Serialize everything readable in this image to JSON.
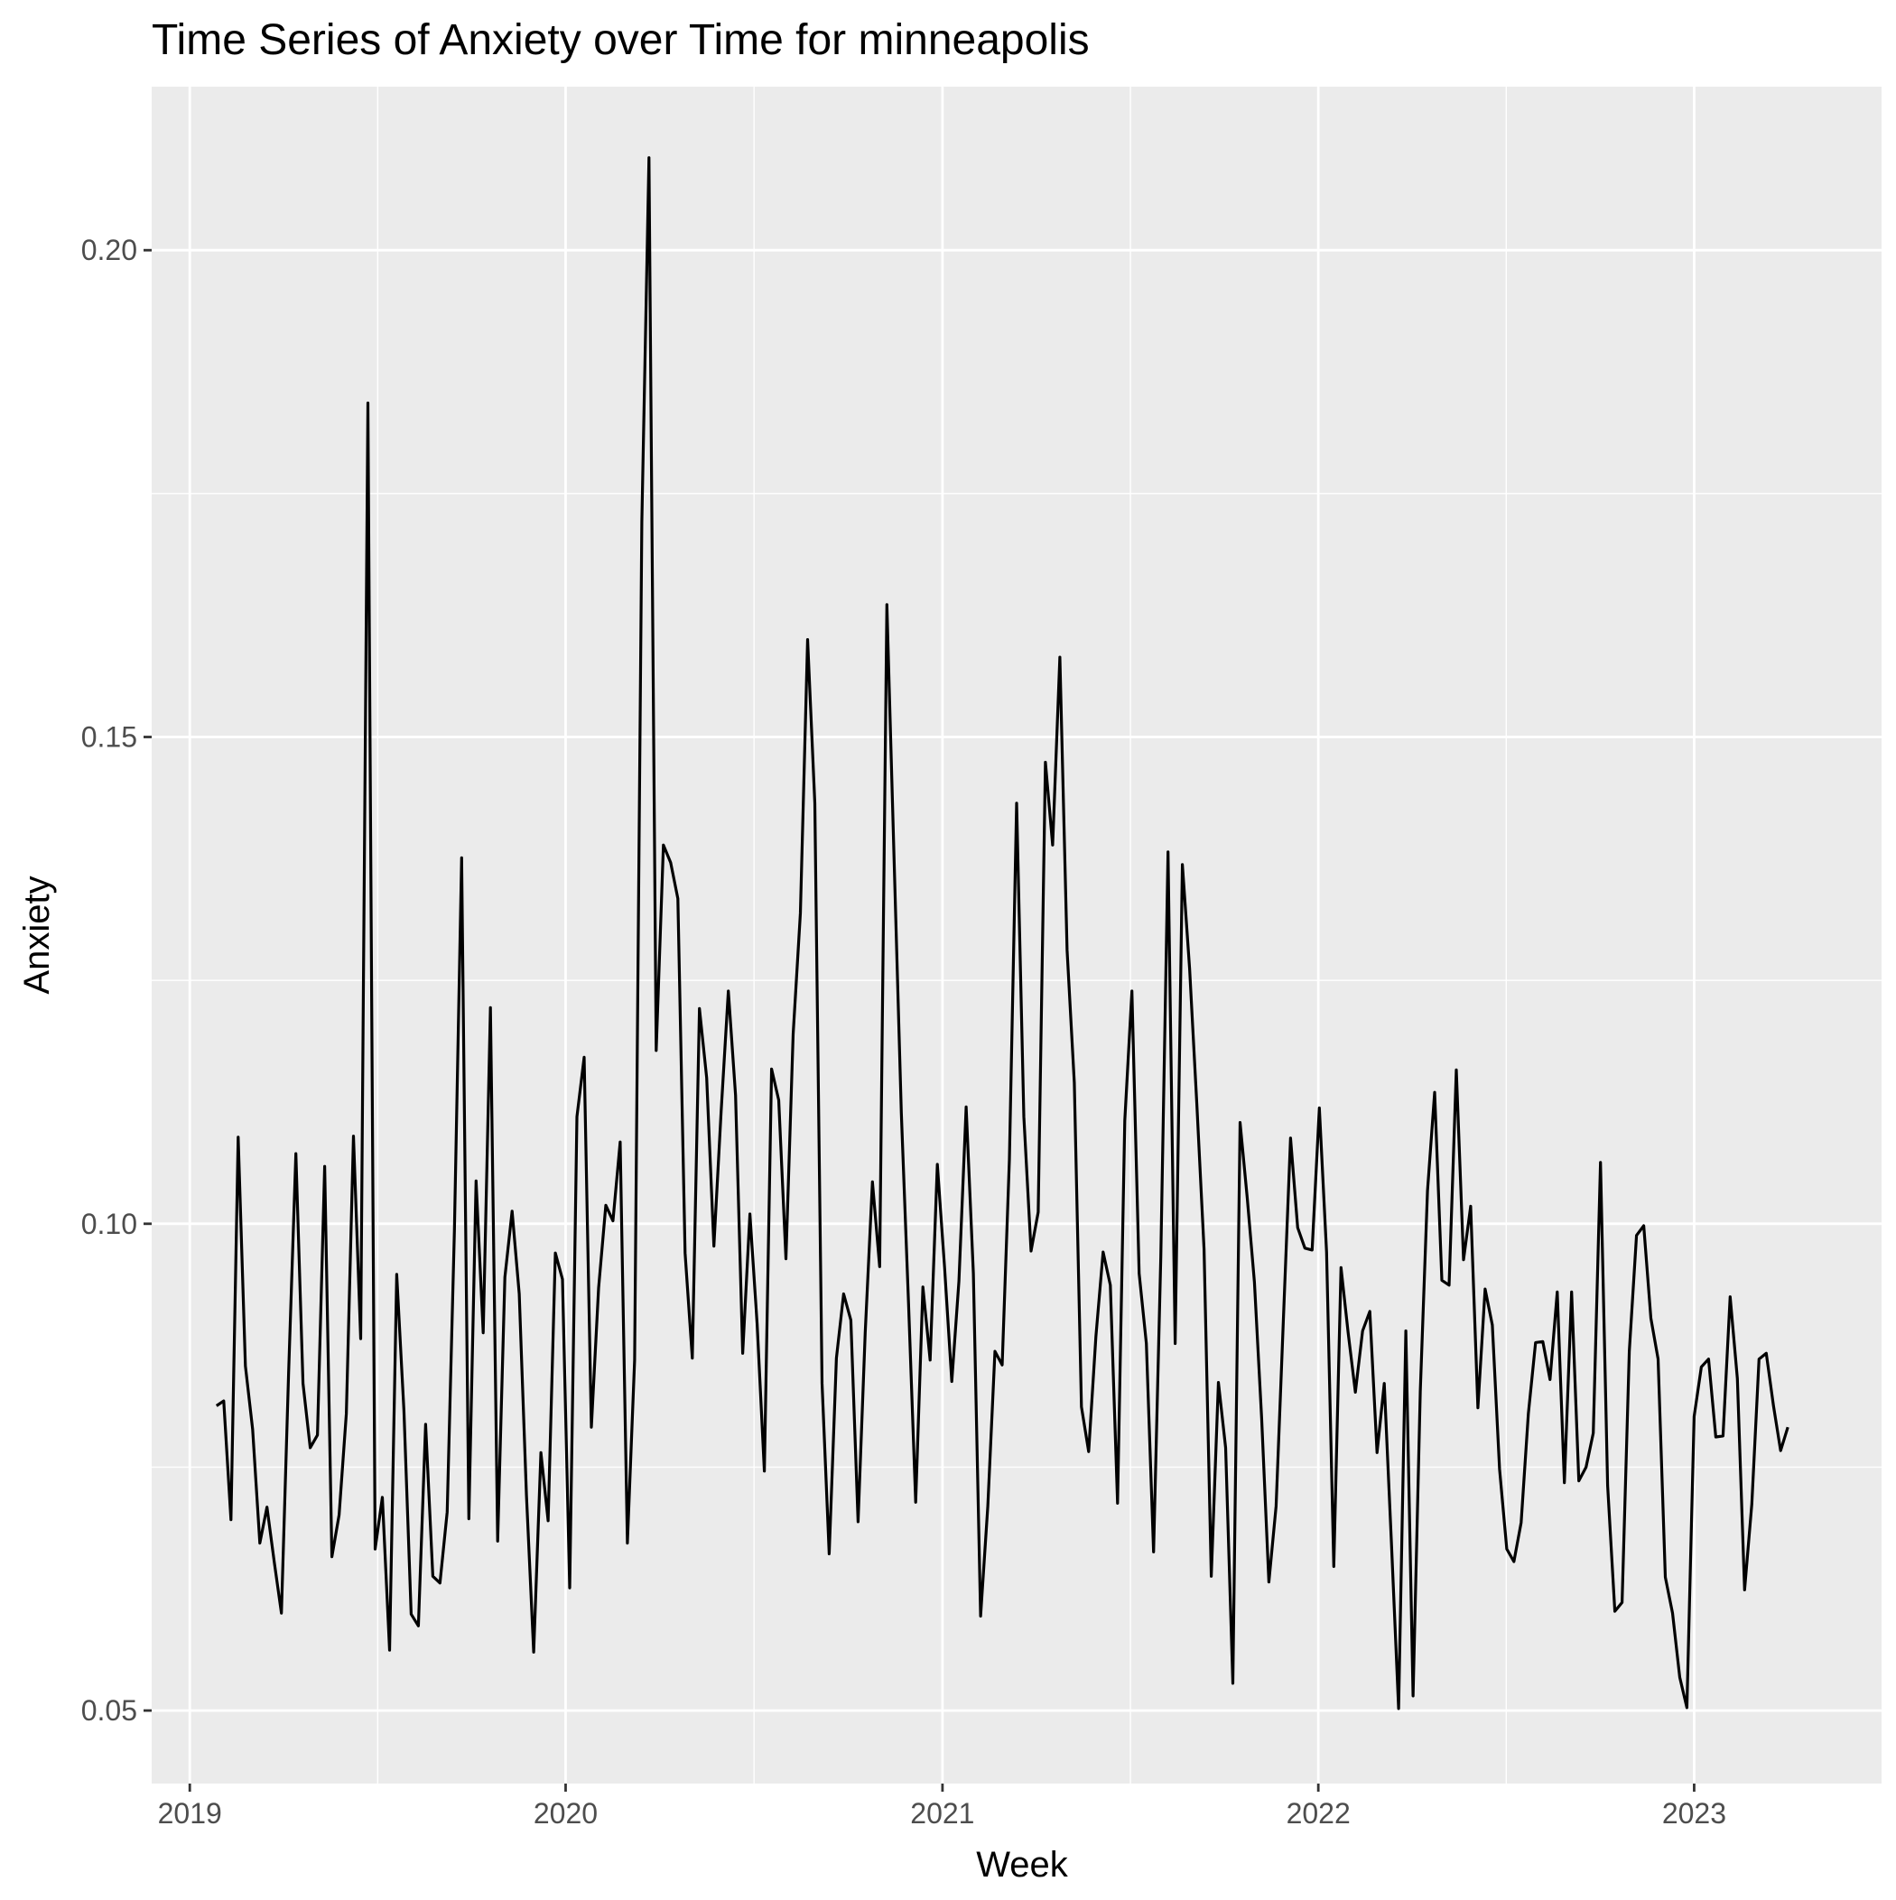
{
  "chart_data": {
    "type": "line",
    "title": "Time Series of Anxiety over Time for  minneapolis",
    "xlabel": "Week",
    "ylabel": "Anxiety",
    "x_range": [
      "2018-11-25",
      "2023-07-02"
    ],
    "ylim": [
      0.0425,
      0.2168
    ],
    "x_ticks": [
      {
        "date": "2019-01-01",
        "label": "2019"
      },
      {
        "date": "2020-01-01",
        "label": "2020"
      },
      {
        "date": "2021-01-01",
        "label": "2021"
      },
      {
        "date": "2022-01-01",
        "label": "2022"
      },
      {
        "date": "2023-01-01",
        "label": "2023"
      }
    ],
    "y_ticks": [
      {
        "value": 0.05,
        "label": "0.05"
      },
      {
        "value": 0.1,
        "label": "0.10"
      },
      {
        "value": 0.15,
        "label": "0.15"
      },
      {
        "value": 0.2,
        "label": "0.20"
      }
    ],
    "grid": true,
    "background": "#EBEBEB",
    "gridline_color": "#FFFFFF",
    "line_color": "#000000",
    "series": [
      {
        "x": [
          "2019-01-27",
          "2019-02-03",
          "2019-02-10",
          "2019-02-17",
          "2019-02-24",
          "2019-03-03",
          "2019-03-10",
          "2019-03-17",
          "2019-03-24",
          "2019-03-31",
          "2019-04-07",
          "2019-04-14",
          "2019-04-21",
          "2019-04-28",
          "2019-05-05",
          "2019-05-12",
          "2019-05-19",
          "2019-05-26",
          "2019-06-02",
          "2019-06-09",
          "2019-06-16",
          "2019-06-23",
          "2019-06-30",
          "2019-07-07",
          "2019-07-14",
          "2019-07-21",
          "2019-07-28",
          "2019-08-04",
          "2019-08-11",
          "2019-08-18",
          "2019-08-25",
          "2019-09-01",
          "2019-09-08",
          "2019-09-15",
          "2019-09-22",
          "2019-09-29",
          "2019-10-06",
          "2019-10-13",
          "2019-10-20",
          "2019-10-27",
          "2019-11-03",
          "2019-11-10",
          "2019-11-17",
          "2019-11-24",
          "2019-12-01",
          "2019-12-08",
          "2019-12-15",
          "2019-12-22",
          "2019-12-29",
          "2020-01-05",
          "2020-01-12",
          "2020-01-19",
          "2020-01-26",
          "2020-02-02",
          "2020-02-09",
          "2020-02-16",
          "2020-02-23",
          "2020-03-01",
          "2020-03-08",
          "2020-03-15",
          "2020-03-22",
          "2020-03-29",
          "2020-04-05",
          "2020-04-12",
          "2020-04-19",
          "2020-04-26",
          "2020-05-03",
          "2020-05-10",
          "2020-05-17",
          "2020-05-24",
          "2020-05-31",
          "2020-06-07",
          "2020-06-14",
          "2020-06-21",
          "2020-06-28",
          "2020-07-05",
          "2020-07-12",
          "2020-07-19",
          "2020-07-26",
          "2020-08-02",
          "2020-08-09",
          "2020-08-16",
          "2020-08-23",
          "2020-08-30",
          "2020-09-06",
          "2020-09-13",
          "2020-09-20",
          "2020-09-27",
          "2020-10-04",
          "2020-10-11",
          "2020-10-18",
          "2020-10-25",
          "2020-11-01",
          "2020-11-08",
          "2020-11-15",
          "2020-11-22",
          "2020-11-29",
          "2020-12-06",
          "2020-12-13",
          "2020-12-20",
          "2020-12-27",
          "2021-01-03",
          "2021-01-10",
          "2021-01-17",
          "2021-01-24",
          "2021-01-31",
          "2021-02-07",
          "2021-02-14",
          "2021-02-21",
          "2021-02-28",
          "2021-03-07",
          "2021-03-14",
          "2021-03-21",
          "2021-03-28",
          "2021-04-04",
          "2021-04-11",
          "2021-04-18",
          "2021-04-25",
          "2021-05-02",
          "2021-05-09",
          "2021-05-16",
          "2021-05-23",
          "2021-05-30",
          "2021-06-06",
          "2021-06-13",
          "2021-06-20",
          "2021-06-27",
          "2021-07-04",
          "2021-07-11",
          "2021-07-18",
          "2021-07-25",
          "2021-08-01",
          "2021-08-08",
          "2021-08-15",
          "2021-08-22",
          "2021-08-29",
          "2021-09-05",
          "2021-09-12",
          "2021-09-19",
          "2021-09-26",
          "2021-10-03",
          "2021-10-10",
          "2021-10-17",
          "2021-10-24",
          "2021-10-31",
          "2021-11-07",
          "2021-11-14",
          "2021-11-21",
          "2021-11-28",
          "2021-12-05",
          "2021-12-12",
          "2021-12-19",
          "2021-12-26",
          "2022-01-02",
          "2022-01-09",
          "2022-01-16",
          "2022-01-23",
          "2022-01-30",
          "2022-02-06",
          "2022-02-13",
          "2022-02-20",
          "2022-02-27",
          "2022-03-06",
          "2022-03-13",
          "2022-03-20",
          "2022-03-27",
          "2022-04-03",
          "2022-04-10",
          "2022-04-17",
          "2022-04-24",
          "2022-05-01",
          "2022-05-08",
          "2022-05-15",
          "2022-05-22",
          "2022-05-29",
          "2022-06-05",
          "2022-06-12",
          "2022-06-19",
          "2022-06-26",
          "2022-07-03",
          "2022-07-10",
          "2022-07-17",
          "2022-07-24",
          "2022-07-31",
          "2022-08-07",
          "2022-08-14",
          "2022-08-21",
          "2022-08-28",
          "2022-09-04",
          "2022-09-11",
          "2022-09-18",
          "2022-09-25",
          "2022-10-02",
          "2022-10-09",
          "2022-10-16",
          "2022-10-23",
          "2022-10-30",
          "2022-11-06",
          "2022-11-13",
          "2022-11-20",
          "2022-11-27",
          "2022-12-04",
          "2022-12-11",
          "2022-12-18",
          "2022-12-25",
          "2023-01-01",
          "2023-01-08",
          "2023-01-15",
          "2023-01-22",
          "2023-01-29",
          "2023-02-05",
          "2023-02-12",
          "2023-02-19",
          "2023-02-26",
          "2023-03-05",
          "2023-03-12",
          "2023-03-19",
          "2023-03-26",
          "2023-04-02"
        ],
        "y": [
          0.0813,
          0.0818,
          0.0696,
          0.1089,
          0.0854,
          0.0789,
          0.0672,
          0.0709,
          0.0653,
          0.06,
          0.0848,
          0.1072,
          0.0836,
          0.077,
          0.0783,
          0.1059,
          0.0658,
          0.0701,
          0.0805,
          0.109,
          0.0882,
          0.1843,
          0.0666,
          0.0719,
          0.0562,
          0.0948,
          0.0808,
          0.0599,
          0.0587,
          0.0794,
          0.0638,
          0.0631,
          0.0704,
          0.0993,
          0.1376,
          0.0697,
          0.1044,
          0.0888,
          0.1222,
          0.0674,
          0.0945,
          0.1013,
          0.0928,
          0.0721,
          0.056,
          0.0765,
          0.0695,
          0.097,
          0.0943,
          0.0626,
          0.111,
          0.1171,
          0.0791,
          0.0934,
          0.1019,
          0.1003,
          0.1084,
          0.0672,
          0.086,
          0.1721,
          0.2095,
          0.1178,
          0.1389,
          0.1371,
          0.1334,
          0.097,
          0.0862,
          0.1221,
          0.115,
          0.0977,
          0.1115,
          0.1239,
          0.1132,
          0.0867,
          0.101,
          0.0897,
          0.0746,
          0.1159,
          0.1127,
          0.0964,
          0.1195,
          0.1319,
          0.16,
          0.1432,
          0.0836,
          0.0661,
          0.0862,
          0.0928,
          0.0901,
          0.0694,
          0.0888,
          0.1043,
          0.0956,
          0.1636,
          0.1374,
          0.1114,
          0.0918,
          0.0714,
          0.0935,
          0.086,
          0.1061,
          0.0955,
          0.0838,
          0.0941,
          0.112,
          0.0949,
          0.0597,
          0.071,
          0.0869,
          0.0855,
          0.1066,
          0.1432,
          0.111,
          0.0972,
          0.1012,
          0.1474,
          0.1389,
          0.1582,
          0.1281,
          0.1145,
          0.0812,
          0.0766,
          0.0884,
          0.0971,
          0.0937,
          0.0713,
          0.1106,
          0.1239,
          0.0949,
          0.0877,
          0.0663,
          0.0966,
          0.1382,
          0.0877,
          0.1369,
          0.1262,
          0.1123,
          0.0974,
          0.0638,
          0.0837,
          0.077,
          0.0528,
          0.1104,
          0.1026,
          0.094,
          0.08,
          0.0632,
          0.071,
          0.09,
          0.1088,
          0.0996,
          0.0975,
          0.0973,
          0.1119,
          0.0971,
          0.0648,
          0.0955,
          0.0888,
          0.0827,
          0.089,
          0.091,
          0.0765,
          0.0836,
          0.0673,
          0.0502,
          0.089,
          0.0515,
          0.0828,
          0.1034,
          0.1135,
          0.0942,
          0.0937,
          0.1158,
          0.0963,
          0.1018,
          0.0811,
          0.0933,
          0.0896,
          0.0748,
          0.0666,
          0.0653,
          0.0693,
          0.0805,
          0.0878,
          0.0879,
          0.084,
          0.093,
          0.0734,
          0.093,
          0.0736,
          0.075,
          0.0785,
          0.1063,
          0.0731,
          0.0602,
          0.0611,
          0.0869,
          0.0988,
          0.0998,
          0.0903,
          0.0861,
          0.0637,
          0.06,
          0.0534,
          0.0503,
          0.0802,
          0.0853,
          0.0861,
          0.0781,
          0.0782,
          0.0925,
          0.0841,
          0.0624,
          0.0712,
          0.0861,
          0.0867,
          0.0813,
          0.0767,
          0.0791
        ]
      }
    ]
  }
}
